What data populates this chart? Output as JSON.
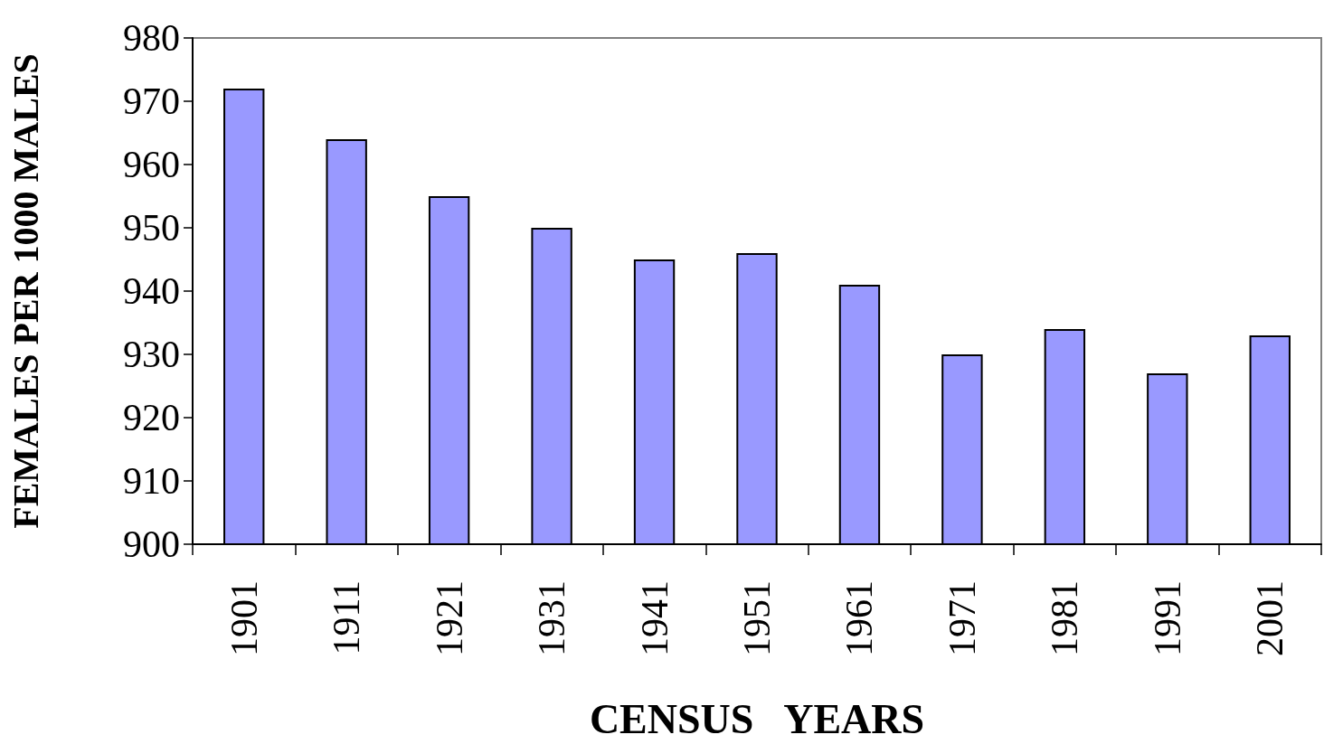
{
  "chart_data": {
    "type": "bar",
    "xlabel": "CENSUS   YEARS",
    "ylabel": "FEMALES PER 1000 MALES",
    "categories": [
      "1901",
      "1911",
      "1921",
      "1931",
      "1941",
      "1951",
      "1961",
      "1971",
      "1981",
      "1991",
      "2001"
    ],
    "values": [
      972,
      964,
      955,
      950,
      945,
      946,
      941,
      930,
      934,
      927,
      933
    ],
    "color": "#9999ff",
    "ylim": [
      900,
      980
    ],
    "yticks": [
      900,
      910,
      920,
      930,
      940,
      950,
      960,
      970,
      980
    ]
  }
}
